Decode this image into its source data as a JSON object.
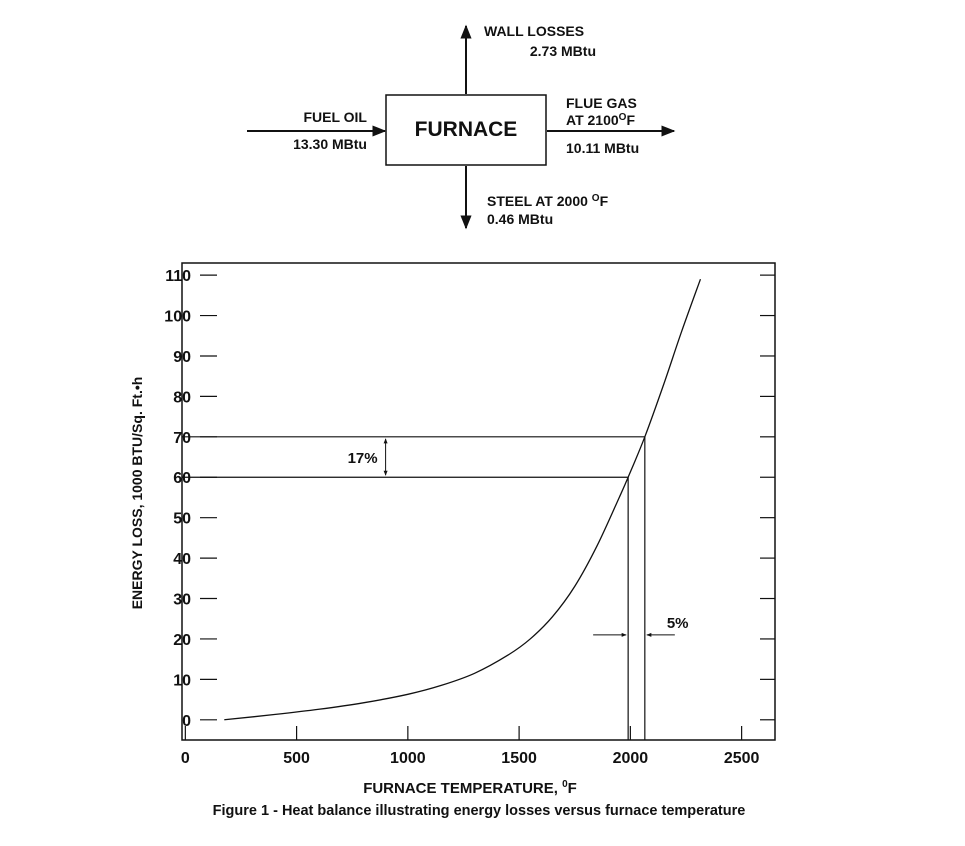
{
  "diagram": {
    "box_label": "FURNACE",
    "input": {
      "label": "FUEL OIL",
      "value": "13.30 MBtu"
    },
    "wall": {
      "label": "WALL LOSSES",
      "value": "2.73 MBtu"
    },
    "flue": {
      "label1": "FLUE GAS",
      "label2": "AT 2100",
      "deg": "O",
      "unit": "F",
      "value": "10.11 MBtu"
    },
    "steel": {
      "label": "STEEL AT 2000 ",
      "deg": "O",
      "unit": "F",
      "value": "0.46 MBtu"
    }
  },
  "chart_data": {
    "type": "line",
    "title": "Figure 1 - Heat balance illustrating energy losses versus furnace temperature",
    "xlabel": "FURNACE TEMPERATURE, ",
    "xlabel_deg": "0",
    "xlabel_unit": "F",
    "ylabel": "ENERGY LOSS, 1000 BTU/Sq. Ft.•h",
    "xlim": [
      -15,
      2650
    ],
    "ylim": [
      -5,
      113
    ],
    "xticks": [
      0,
      500,
      1000,
      1500,
      2000,
      2500
    ],
    "yticks": [
      0,
      10,
      20,
      30,
      40,
      50,
      60,
      70,
      80,
      90,
      100,
      110
    ],
    "grid": false,
    "series": [
      {
        "name": "Energy loss",
        "x": [
          175,
          400,
          600,
          800,
          1000,
          1150,
          1300,
          1450,
          1550,
          1650,
          1750,
          1850,
          1950,
          1990,
          2065,
          2150,
          2230,
          2315
        ],
        "y": [
          0,
          1.3,
          2.6,
          4.2,
          6.3,
          8.5,
          11.5,
          16,
          20,
          25.5,
          33,
          43,
          55,
          60,
          70,
          83,
          96,
          109
        ]
      }
    ],
    "annotations": [
      {
        "text": "17%",
        "type": "vertical-span",
        "y": [
          60,
          70
        ],
        "x_at": 900
      },
      {
        "text": "5%",
        "type": "horizontal-span",
        "x": [
          1990,
          2065
        ],
        "y_at": 21
      }
    ],
    "reference_lines": {
      "y": [
        60,
        70
      ],
      "x": [
        1990,
        2065
      ]
    }
  }
}
